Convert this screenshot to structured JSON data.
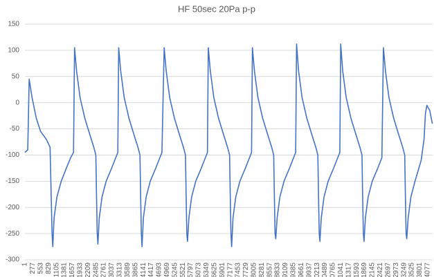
{
  "chart_data": {
    "type": "line",
    "title": "HF 50sec 20Pa p-p",
    "x": [
      1,
      100,
      150,
      250,
      400,
      550,
      750,
      880,
      920,
      950,
      975,
      1020,
      1120,
      1270,
      1450,
      1600,
      1700,
      1736,
      1808,
      1928,
      2096,
      2264,
      2408,
      2480,
      2504,
      2528,
      2552,
      2600,
      2696,
      2840,
      3032,
      3176,
      3248,
      3278,
      3350,
      3470,
      3638,
      3806,
      3950,
      4022,
      4046,
      4070,
      4094,
      4142,
      4238,
      4382,
      4574,
      4718,
      4790,
      4868,
      4940,
      5060,
      5228,
      5396,
      5540,
      5612,
      5636,
      5660,
      5684,
      5732,
      5828,
      5972,
      6164,
      6308,
      6380,
      6410,
      6482,
      6602,
      6770,
      6938,
      7082,
      7154,
      7178,
      7202,
      7226,
      7274,
      7370,
      7514,
      7706,
      7850,
      7922,
      7952,
      8024,
      8144,
      8312,
      8480,
      8624,
      8696,
      8720,
      8744,
      8768,
      8816,
      8912,
      9056,
      9248,
      9392,
      9464,
      9495,
      9567,
      9687,
      9855,
      10023,
      10167,
      10239,
      10263,
      10287,
      10311,
      10359,
      10455,
      10599,
      10791,
      10935,
      11007,
      11037,
      11109,
      11229,
      11397,
      11565,
      11709,
      11781,
      11805,
      11829,
      11853,
      11901,
      11997,
      12141,
      12333,
      12477,
      12531,
      12603,
      12723,
      12891,
      13059,
      13203,
      13275,
      13299,
      13323,
      13347,
      13395,
      13491,
      13635,
      13850,
      13950,
      14000,
      14050,
      14150,
      14240
    ],
    "series": [
      {
        "color": "#4472c4",
        "values": [
          -95,
          -90,
          45,
          10,
          -30,
          -55,
          -70,
          -85,
          -180,
          -250,
          -275,
          -220,
          -180,
          -150,
          -125,
          -105,
          -95,
          105,
          60,
          10,
          -30,
          -60,
          -85,
          -100,
          -180,
          -250,
          -270,
          -220,
          -180,
          -150,
          -125,
          -105,
          -95,
          105,
          60,
          10,
          -30,
          -60,
          -85,
          -100,
          -180,
          -250,
          -275,
          -220,
          -180,
          -150,
          -125,
          -105,
          -95,
          105,
          60,
          10,
          -30,
          -60,
          -85,
          -100,
          -180,
          -250,
          -265,
          -220,
          -180,
          -150,
          -125,
          -105,
          -95,
          105,
          60,
          10,
          -30,
          -60,
          -85,
          -100,
          -180,
          -250,
          -275,
          -220,
          -180,
          -150,
          -125,
          -105,
          -95,
          105,
          60,
          10,
          -30,
          -60,
          -85,
          -100,
          -180,
          -250,
          -260,
          -220,
          -180,
          -150,
          -125,
          -105,
          -95,
          112,
          60,
          10,
          -30,
          -60,
          -85,
          -100,
          -180,
          -250,
          -265,
          -220,
          -180,
          -150,
          -125,
          -105,
          -95,
          112,
          60,
          10,
          -30,
          -60,
          -85,
          -100,
          -180,
          -250,
          -265,
          -220,
          -180,
          -150,
          -125,
          -105,
          105,
          60,
          10,
          -30,
          -60,
          -85,
          -100,
          -180,
          -250,
          -260,
          -220,
          -180,
          -150,
          -110,
          -70,
          -20,
          -5,
          -15,
          -40
        ]
      }
    ],
    "xlim": [
      1,
      14250
    ],
    "xticks": [
      1,
      277,
      553,
      829,
      1105,
      1381,
      1657,
      1933,
      2209,
      2485,
      2761,
      3037,
      3313,
      3589,
      3865,
      4141,
      4417,
      4693,
      4969,
      5245,
      5521,
      5797,
      6073,
      6349,
      6625,
      6901,
      7177,
      7453,
      7729,
      8005,
      8281,
      8557,
      8833,
      9109,
      9385,
      9661,
      9937,
      {
        "value": 10213,
        "label": "0213"
      },
      {
        "value": 10489,
        "label": "0489"
      },
      {
        "value": 10765,
        "label": "0765"
      },
      {
        "value": 11041,
        "label": "1041"
      },
      {
        "value": 11317,
        "label": "1317"
      },
      {
        "value": 11593,
        "label": "1593"
      },
      {
        "value": 11869,
        "label": "1869"
      },
      {
        "value": 12145,
        "label": "2145"
      },
      {
        "value": 12421,
        "label": "2421"
      },
      {
        "value": 12697,
        "label": "2697"
      },
      {
        "value": 12973,
        "label": "2973"
      },
      {
        "value": 13249,
        "label": "3249"
      },
      {
        "value": 13525,
        "label": "3525"
      },
      {
        "value": 13801,
        "label": "3801"
      },
      {
        "value": 14077,
        "label": "4077"
      }
    ],
    "ylim": [
      -300,
      150
    ],
    "yticks": [
      -300,
      -250,
      -200,
      -150,
      -100,
      -50,
      0,
      50,
      100,
      150
    ],
    "grid": true
  }
}
